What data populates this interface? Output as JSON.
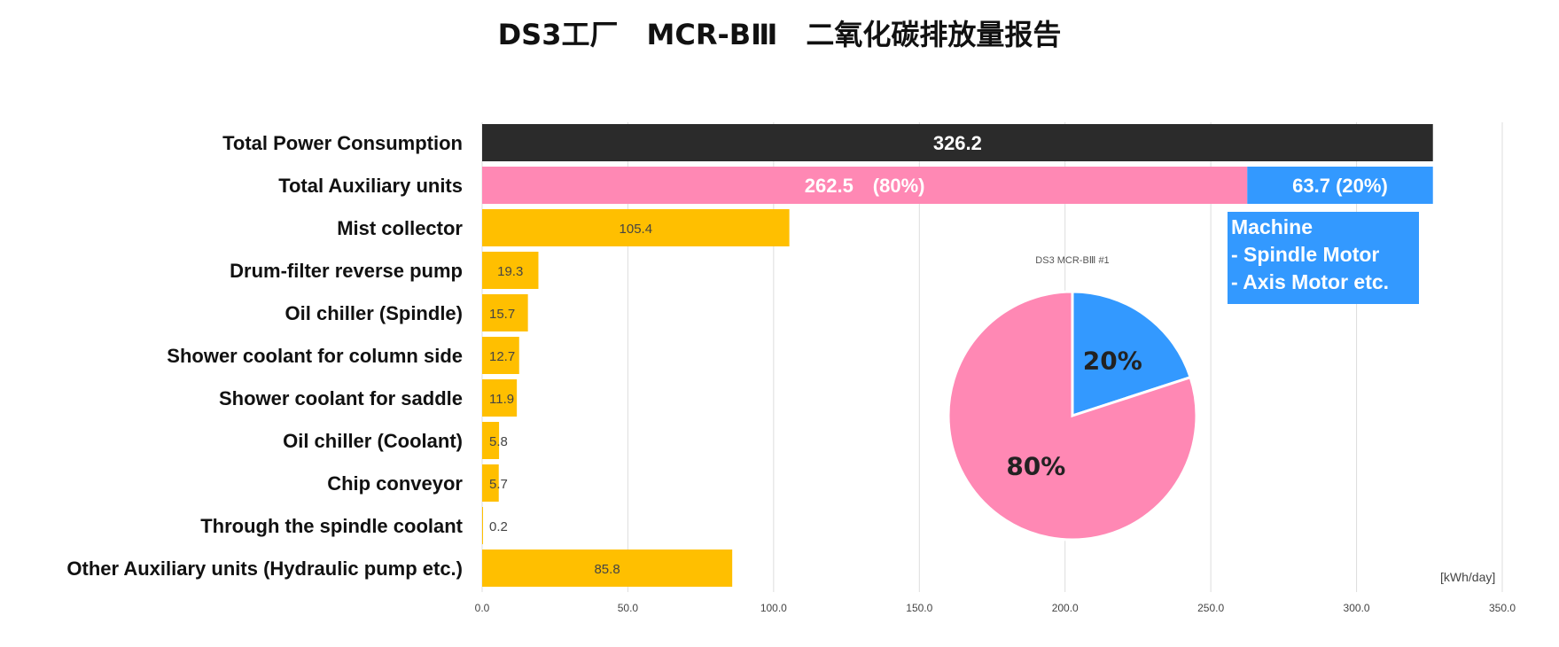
{
  "title": "DS3工厂　MCR-BⅢ　二氧化碳排放量报告",
  "colors": {
    "total": "#2b2b2b",
    "auxiliary": "#ff88b4",
    "machine": "#3399ff",
    "component": "#ffbf00",
    "grid": "#dddddd"
  },
  "chart_data": [
    {
      "type": "bar",
      "orientation": "horizontal",
      "categories": [
        "Total Power Consumption",
        "Total Auxiliary units",
        "Mist collector",
        "Drum-filter reverse pump",
        "Oil chiller (Spindle)",
        "Shower coolant for column side",
        "Shower coolant for saddle",
        "Oil chiller (Coolant)",
        "Chip conveyor",
        "Through the spindle coolant",
        "Other Auxiliary units (Hydraulic pump etc.)"
      ],
      "values": [
        326.2,
        262.5,
        105.4,
        19.3,
        15.7,
        12.7,
        11.9,
        5.8,
        5.7,
        0.2,
        85.8
      ],
      "value_labels": [
        "326.2",
        "262.5　(80%)",
        "105.4",
        "19.3",
        "15.7",
        "12.7",
        "11.9",
        "5.8",
        "5.7",
        "0.2",
        "85.8"
      ],
      "stacked_segment": {
        "category": "Total Auxiliary units",
        "base": 262.5,
        "value": 63.7,
        "label": "63.7 (20%)"
      },
      "xlim": [
        0,
        350
      ],
      "xticks": [
        "0.0",
        "50.0",
        "100.0",
        "150.0",
        "200.0",
        "250.0",
        "300.0",
        "350.0"
      ],
      "xtick_values": [
        0,
        50,
        100,
        150,
        200,
        250,
        300,
        350
      ],
      "unit_label": "[kWh/day]",
      "grid": true
    },
    {
      "type": "pie",
      "title": "DS3 MCR-BⅢ #1",
      "slices": [
        {
          "label": "20%",
          "value": 20
        },
        {
          "label": "80%",
          "value": 80
        }
      ]
    }
  ],
  "machine_box": {
    "lines": [
      "Machine",
      "- Spindle Motor",
      "- Axis Motor etc."
    ]
  }
}
